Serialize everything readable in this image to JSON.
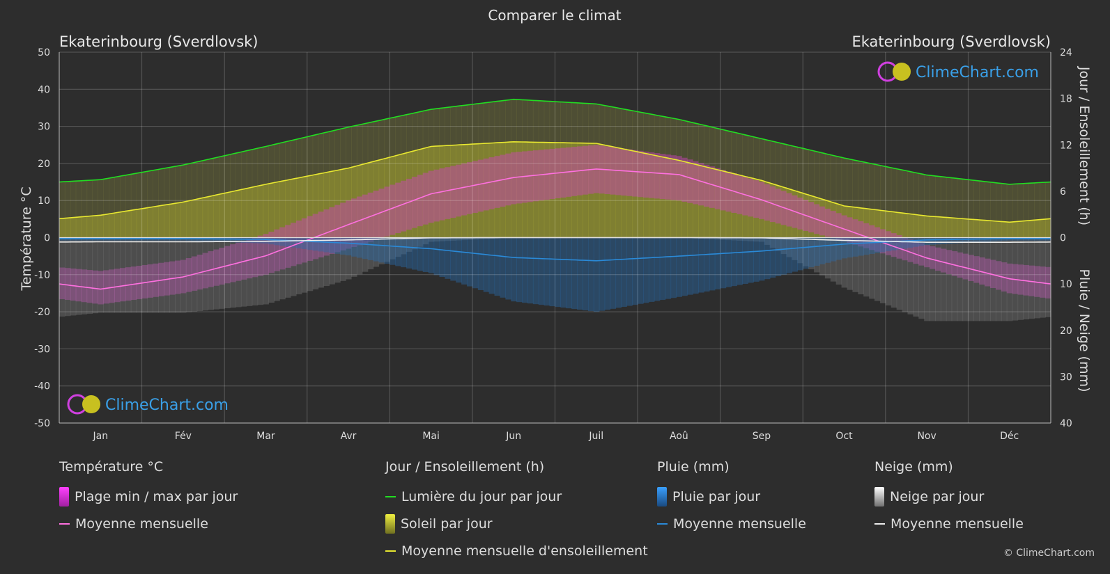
{
  "page": {
    "title": "Comparer le climat",
    "copyright": "© ClimeChart.com"
  },
  "locations": {
    "left": "Ekaterinbourg (Sverdlovsk)",
    "right": "Ekaterinbourg (Sverdlovsk)"
  },
  "watermark": "ClimeChart.com",
  "colors": {
    "background": "#2d2d2d",
    "temp_range": "#e040d0",
    "temp_mean": "#ff70e0",
    "daylight": "#22dd22",
    "sunshine_fill": "#a8a830",
    "sunshine_mean": "#e8e830",
    "rain": "#2a8ad8",
    "rain_mean": "#2a8ad8",
    "snow": "#c8c8c8",
    "snow_mean": "#eeeeee"
  },
  "chart_data": {
    "type": "line",
    "categories": [
      "Jan",
      "Fév",
      "Mar",
      "Avr",
      "Mai",
      "Jun",
      "Juil",
      "Aoû",
      "Sep",
      "Oct",
      "Nov",
      "Déc"
    ],
    "ylabel_left": "Température °C",
    "ylabel_right_top": "Jour / Ensoleillement (h)",
    "ylabel_right_bottom": "Pluie / Neige (mm)",
    "y_left_range": [
      -50,
      50
    ],
    "y_left_ticks": [
      "50",
      "40",
      "30",
      "20",
      "10",
      "0",
      "-10",
      "-20",
      "-30",
      "-40",
      "-50"
    ],
    "y_right_top_ticks": [
      "24",
      "18",
      "12",
      "6",
      "0"
    ],
    "y_right_bottom_ticks": [
      "10",
      "20",
      "30",
      "40"
    ],
    "series": [
      {
        "name": "Lumière du jour par jour",
        "unit": "h",
        "values": [
          7.5,
          9.4,
          11.8,
          14.3,
          16.6,
          17.9,
          17.3,
          15.3,
          12.8,
          10.3,
          8.1,
          6.9
        ]
      },
      {
        "name": "Moyenne mensuelle d'ensoleillement",
        "unit": "h",
        "values": [
          2.9,
          4.6,
          6.9,
          9.0,
          11.8,
          12.4,
          12.2,
          10.0,
          7.4,
          4.1,
          2.8,
          2.0
        ]
      },
      {
        "name": "Moyenne mensuelle",
        "group": "Température",
        "unit": "°C",
        "values": [
          -13.9,
          -10.6,
          -4.9,
          3.5,
          11.8,
          16.2,
          18.5,
          17.0,
          10.2,
          2.3,
          -5.5,
          -11.1
        ]
      },
      {
        "name": "Moyenne mensuelle",
        "group": "Pluie",
        "unit": "mm",
        "values": [
          0.2,
          0.2,
          0.4,
          1.2,
          2.4,
          4.3,
          5.0,
          4.0,
          2.9,
          1.4,
          0.5,
          0.2
        ]
      },
      {
        "name": "Moyenne mensuelle",
        "group": "Neige",
        "unit": "mm",
        "values": [
          0.9,
          0.9,
          0.8,
          0.5,
          0.05,
          0,
          0,
          0,
          0.05,
          0.6,
          1.0,
          1.0
        ]
      }
    ],
    "temp_range": {
      "max": [
        -9,
        -6,
        1,
        10,
        18,
        23,
        25,
        22,
        15,
        6,
        -2,
        -7
      ],
      "min": [
        -18,
        -15,
        -10,
        -3,
        4,
        9,
        12,
        10,
        5,
        -1,
        -8,
        -15
      ]
    }
  },
  "legend": {
    "temp": {
      "title": "Température °C",
      "range": "Plage min / max par jour",
      "mean": "Moyenne mensuelle"
    },
    "sun": {
      "title": "Jour / Ensoleillement (h)",
      "daylight": "Lumière du jour par jour",
      "sunshine": "Soleil par jour",
      "sunshine_mean": "Moyenne mensuelle d'ensoleillement"
    },
    "rain": {
      "title": "Pluie (mm)",
      "daily": "Pluie par jour",
      "mean": "Moyenne mensuelle"
    },
    "snow": {
      "title": "Neige (mm)",
      "daily": "Neige par jour",
      "mean": "Moyenne mensuelle"
    }
  }
}
